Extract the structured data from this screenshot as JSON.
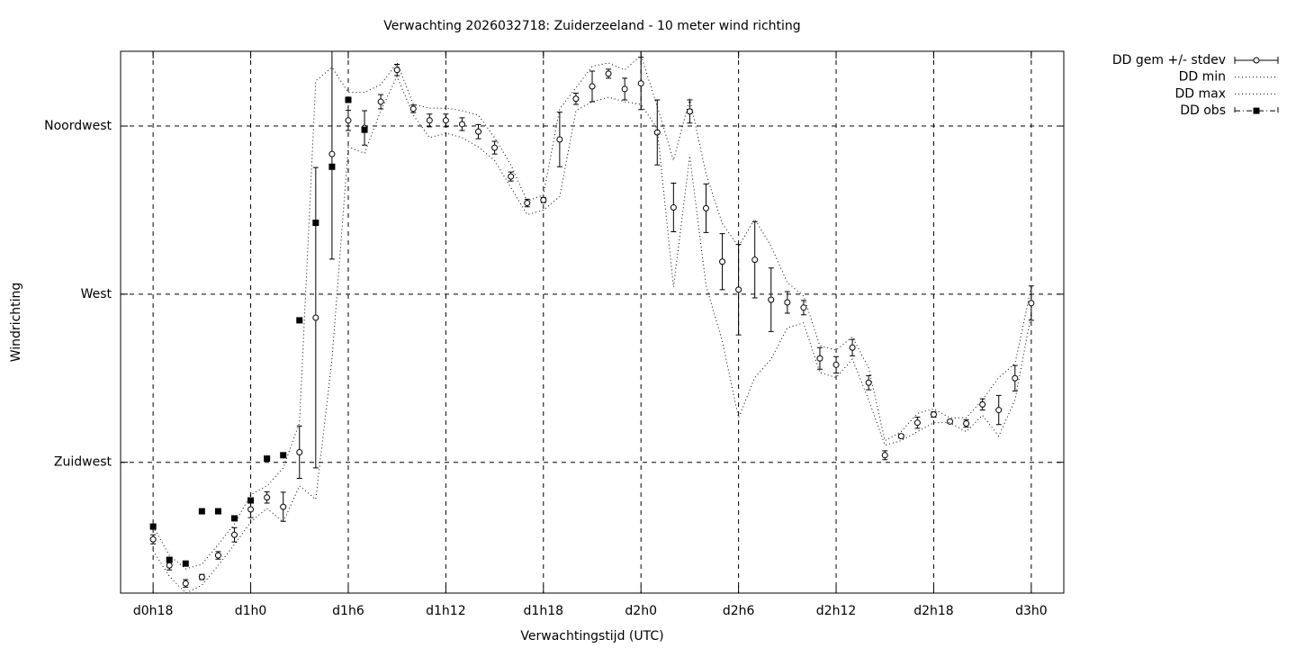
{
  "chart_data": {
    "type": "errorline",
    "title": "Verwachting 2026032718: Zuiderzeeland - 10 meter wind richting",
    "x_label": "Verwachtingstijd (UTC)",
    "y_label": "Windrichting",
    "x": [
      18,
      19,
      20,
      21,
      22,
      23,
      24,
      25,
      26,
      27,
      28,
      29,
      30,
      31,
      32,
      33,
      34,
      35,
      36,
      37,
      38,
      39,
      40,
      41,
      42,
      43,
      44,
      45,
      46,
      47,
      48,
      49,
      50,
      51,
      52,
      53,
      54,
      55,
      56,
      57,
      58,
      59,
      60,
      61,
      62,
      63,
      64,
      65,
      66,
      67,
      68,
      69,
      70,
      71,
      72
    ],
    "xlim": [
      16,
      74
    ],
    "xticks": [
      {
        "value": 18,
        "label": "d0h18"
      },
      {
        "value": 24,
        "label": "d1h0"
      },
      {
        "value": 30,
        "label": "d1h6"
      },
      {
        "value": 36,
        "label": "d1h12"
      },
      {
        "value": 42,
        "label": "d1h18"
      },
      {
        "value": 48,
        "label": "d2h0"
      },
      {
        "value": 54,
        "label": "d2h6"
      },
      {
        "value": 60,
        "label": "d2h12"
      },
      {
        "value": 66,
        "label": "d2h18"
      },
      {
        "value": 72,
        "label": "d3h0"
      }
    ],
    "ylim": [
      190,
      335
    ],
    "yticks": [
      {
        "value": 225,
        "label": "Zuidwest"
      },
      {
        "value": 270,
        "label": "West"
      },
      {
        "value": 315,
        "label": "Noordwest"
      }
    ],
    "grid": true,
    "legend": "outside-top-right",
    "series": [
      {
        "name": "DD gem +/- stdev",
        "color": "#000000",
        "style": "errorbars",
        "values": [
          204.4,
          197.4,
          192.6,
          194.3,
          200.1,
          205.6,
          212.4,
          215.6,
          213.1,
          227.7,
          263.7,
          307.5,
          316.5,
          314.5,
          321.5,
          330.0,
          319.6,
          316.5,
          316.5,
          315.5,
          313.5,
          309.2,
          301.5,
          294.4,
          295.2,
          311.4,
          322.3,
          325.6,
          329.0,
          324.9,
          326.4,
          313.3,
          293.2,
          318.9,
          293.0,
          278.7,
          271.2,
          279.2,
          268.5,
          267.8,
          266.4,
          252.8,
          251.1,
          255.7,
          246.3,
          226.9,
          232.0,
          235.6,
          237.8,
          235.9,
          235.4,
          240.5,
          239.0,
          247.5,
          267.6
        ],
        "errors": [
          1.2,
          1.2,
          1.0,
          0.7,
          1.0,
          1.9,
          2.2,
          1.5,
          3.9,
          7.0,
          40.2,
          28.1,
          2.7,
          4.6,
          1.9,
          1.5,
          1.0,
          1.7,
          1.7,
          1.7,
          1.9,
          1.7,
          1.2,
          1.0,
          0.7,
          7.3,
          1.5,
          4.1,
          1.2,
          2.9,
          7.0,
          8.7,
          6.5,
          3.1,
          6.5,
          7.5,
          12.1,
          10.2,
          8.5,
          2.9,
          1.9,
          2.9,
          2.2,
          2.2,
          1.9,
          1.2,
          0.5,
          1.5,
          0.7,
          0.5,
          1.0,
          1.5,
          3.9,
          3.4,
          4.6
        ]
      },
      {
        "name": "DD min",
        "color": "#000000",
        "style": "dotted",
        "values": [
          201.3,
          194.5,
          190,
          192.1,
          197.4,
          203.0,
          209.0,
          212.7,
          209.0,
          218.7,
          215.1,
          252.6,
          309.4,
          307.7,
          319.1,
          328.3,
          317.9,
          311.9,
          313.1,
          311.9,
          309.4,
          305.8,
          298.5,
          291.3,
          292.5,
          296.1,
          319.1,
          321.5,
          322.7,
          321.5,
          320.8,
          314.3,
          271.9,
          307.0,
          272.4,
          257.4,
          236.9,
          247.7,
          252.6,
          261.0,
          262.3,
          249.0,
          247.7,
          252.6,
          241.7,
          229.6,
          230.8,
          233.2,
          235.6,
          235.6,
          233.2,
          237.6,
          232.0,
          241.7,
          264.7
        ]
      },
      {
        "name": "DD max",
        "color": "#000000",
        "style": "dotted",
        "values": [
          207.8,
          200.1,
          196.5,
          197.7,
          203.0,
          208.5,
          216.3,
          218.7,
          223.5,
          235.6,
          327.1,
          330.7,
          324.0,
          324.0,
          326.1,
          331.9,
          320.8,
          319.8,
          319.8,
          319.1,
          317.9,
          311.9,
          304.6,
          294.9,
          296.6,
          319.6,
          325.2,
          331.0,
          331.9,
          330.0,
          333.9,
          320.3,
          305.8,
          322.3,
          302.2,
          288.9,
          282.8,
          290.1,
          282.8,
          273.1,
          269.5,
          256.2,
          255.0,
          258.6,
          250.2,
          230.8,
          233.2,
          238.1,
          239.3,
          236.9,
          236.9,
          241.7,
          247.7,
          251.4,
          271.9
        ]
      },
      {
        "name": "DD obs",
        "color": "#000000",
        "style": "points",
        "values": [
          207.8,
          198.9,
          197.9,
          211.9,
          211.9,
          210.0,
          214.8,
          226.0,
          226.9,
          263.0,
          289.1,
          304.1,
          322.0,
          314.0,
          null,
          null,
          null,
          null,
          null,
          null,
          null,
          null,
          null,
          null,
          null,
          null,
          null,
          null,
          null,
          null,
          null,
          null,
          null,
          null,
          null,
          null,
          null,
          null,
          null,
          null,
          null,
          null,
          null,
          null,
          null,
          null,
          null,
          null,
          null,
          null,
          null,
          null,
          null,
          null,
          null
        ]
      }
    ]
  }
}
